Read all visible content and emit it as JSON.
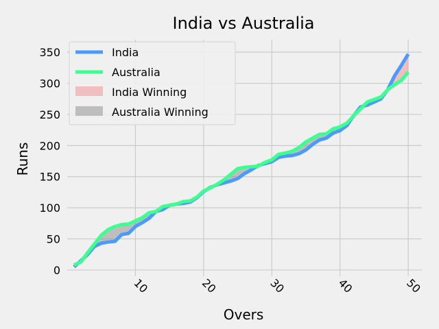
{
  "chart_data": {
    "type": "line",
    "title": "India vs Australia",
    "xlabel": "Overs",
    "ylabel": "Runs",
    "xlim": [
      0,
      52
    ],
    "ylim": [
      -10,
      370
    ],
    "xticks": [
      10,
      20,
      30,
      40,
      50
    ],
    "xtick_labels": [
      "10",
      "20",
      "30",
      "40",
      "50"
    ],
    "yticks": [
      0,
      50,
      100,
      150,
      200,
      250,
      300,
      350
    ],
    "ytick_labels": [
      "0",
      "50",
      "100",
      "150",
      "200",
      "250",
      "300",
      "350"
    ],
    "xtick_rotation_deg": -45,
    "grid": true,
    "legend_placement": "top-left",
    "x": [
      1,
      2,
      3,
      4,
      5,
      6,
      7,
      8,
      9,
      10,
      11,
      12,
      13,
      14,
      15,
      16,
      17,
      18,
      19,
      20,
      21,
      22,
      23,
      24,
      25,
      26,
      27,
      28,
      29,
      30,
      31,
      32,
      33,
      34,
      35,
      36,
      37,
      38,
      39,
      40,
      41,
      42,
      43,
      44,
      45,
      46,
      47,
      48,
      49,
      50
    ],
    "series": [
      {
        "name": "India",
        "color": "#4c9aff",
        "values": [
          5,
          15,
          25,
          38,
          43,
          45,
          46,
          57,
          59,
          70,
          76,
          83,
          94,
          97,
          104,
          106,
          107,
          109,
          116,
          126,
          133,
          137,
          140,
          143,
          147,
          155,
          161,
          168,
          171,
          174,
          181,
          183,
          184,
          187,
          193,
          202,
          209,
          212,
          220,
          224,
          232,
          248,
          262,
          265,
          270,
          275,
          290,
          312,
          329,
          347
        ]
      },
      {
        "name": "Australia",
        "color": "#3dff90",
        "values": [
          8,
          13,
          28,
          42,
          56,
          65,
          70,
          73,
          74,
          79,
          84,
          92,
          94,
          102,
          104,
          106,
          110,
          111,
          117,
          127,
          132,
          138,
          145,
          154,
          163,
          165,
          166,
          167,
          173,
          177,
          186,
          188,
          191,
          197,
          206,
          212,
          218,
          219,
          227,
          230,
          236,
          248,
          259,
          270,
          274,
          278,
          290,
          298,
          305,
          318
        ]
      }
    ],
    "fills": [
      {
        "name": "India Winning",
        "color": "#f08080",
        "opacity": 0.45
      },
      {
        "name": "Australia Winning",
        "color": "#808080",
        "opacity": 0.45
      }
    ]
  }
}
